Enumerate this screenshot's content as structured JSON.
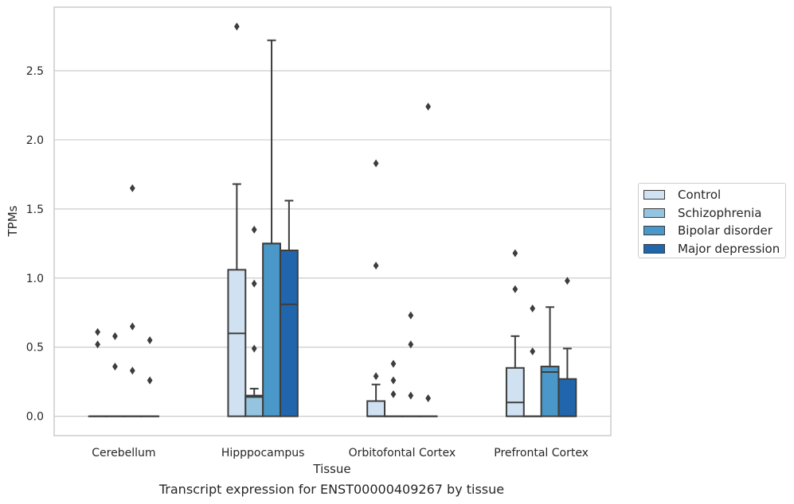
{
  "chart_data": {
    "type": "box",
    "title": "",
    "caption": "Transcript expression for ENST00000409267 by tissue",
    "xlabel": "Tissue",
    "ylabel": "TPMs",
    "ylim": [
      -0.14,
      2.96
    ],
    "yticks": [
      "0.0",
      "0.5",
      "1.0",
      "1.5",
      "2.0",
      "2.5"
    ],
    "categories": [
      "Cerebellum",
      "Hipppocampus",
      "Orbitofontal Cortex",
      "Prefrontal Cortex"
    ],
    "grid": "horizontal",
    "legend_position": "right",
    "series": [
      {
        "name": "Control",
        "color": "#d0e1f2",
        "boxes": [
          {
            "whislo": 0,
            "q1": 0,
            "med": 0,
            "q3": 0,
            "whishi": 0,
            "fliers": [
              0.61,
              0.52
            ]
          },
          {
            "whislo": 0,
            "q1": 0,
            "med": 0.6,
            "q3": 1.06,
            "whishi": 1.68,
            "fliers": [
              2.82
            ]
          },
          {
            "whislo": 0,
            "q1": 0,
            "med": 0,
            "q3": 0.11,
            "whishi": 0.23,
            "fliers": [
              1.83,
              1.09,
              0.29
            ]
          },
          {
            "whislo": 0,
            "q1": 0,
            "med": 0.1,
            "q3": 0.35,
            "whishi": 0.58,
            "fliers": [
              1.18,
              0.92
            ]
          }
        ]
      },
      {
        "name": "Schizophrenia",
        "color": "#94c4df",
        "boxes": [
          {
            "whislo": 0,
            "q1": 0,
            "med": 0,
            "q3": 0,
            "whishi": 0,
            "fliers": [
              0.58,
              0.36
            ]
          },
          {
            "whislo": 0,
            "q1": 0,
            "med": 0.14,
            "q3": 0.15,
            "whishi": 0.2,
            "fliers": [
              1.35,
              0.96,
              0.49
            ]
          },
          {
            "whislo": 0,
            "q1": 0,
            "med": 0,
            "q3": 0,
            "whishi": 0,
            "fliers": [
              0.38,
              0.26,
              0.16
            ]
          },
          {
            "whislo": 0,
            "q1": 0,
            "med": 0,
            "q3": 0,
            "whishi": 0,
            "fliers": [
              0.78,
              0.47
            ]
          }
        ]
      },
      {
        "name": "Bipolar disorder",
        "color": "#4a98c9",
        "boxes": [
          {
            "whislo": 0,
            "q1": 0,
            "med": 0,
            "q3": 0,
            "whishi": 0,
            "fliers": [
              1.65,
              0.65,
              0.33
            ]
          },
          {
            "whislo": 0,
            "q1": 0,
            "med": 1.25,
            "q3": 1.25,
            "whishi": 2.72,
            "fliers": []
          },
          {
            "whislo": 0,
            "q1": 0,
            "med": 0,
            "q3": 0,
            "whishi": 0,
            "fliers": [
              0.73,
              0.52,
              0.15
            ]
          },
          {
            "whislo": 0,
            "q1": 0,
            "med": 0.32,
            "q3": 0.36,
            "whishi": 0.79,
            "fliers": []
          }
        ]
      },
      {
        "name": "Major depression",
        "color": "#2166ac",
        "boxes": [
          {
            "whislo": 0,
            "q1": 0,
            "med": 0,
            "q3": 0,
            "whishi": 0,
            "fliers": [
              0.55,
              0.26
            ]
          },
          {
            "whislo": 0,
            "q1": 0,
            "med": 0.81,
            "q3": 1.2,
            "whishi": 1.56,
            "fliers": []
          },
          {
            "whislo": 0,
            "q1": 0,
            "med": 0,
            "q3": 0,
            "whishi": 0,
            "fliers": [
              2.24,
              0.13
            ]
          },
          {
            "whislo": 0,
            "q1": 0,
            "med": 0,
            "q3": 0.27,
            "whishi": 0.49,
            "fliers": [
              0.98
            ]
          }
        ]
      }
    ]
  }
}
